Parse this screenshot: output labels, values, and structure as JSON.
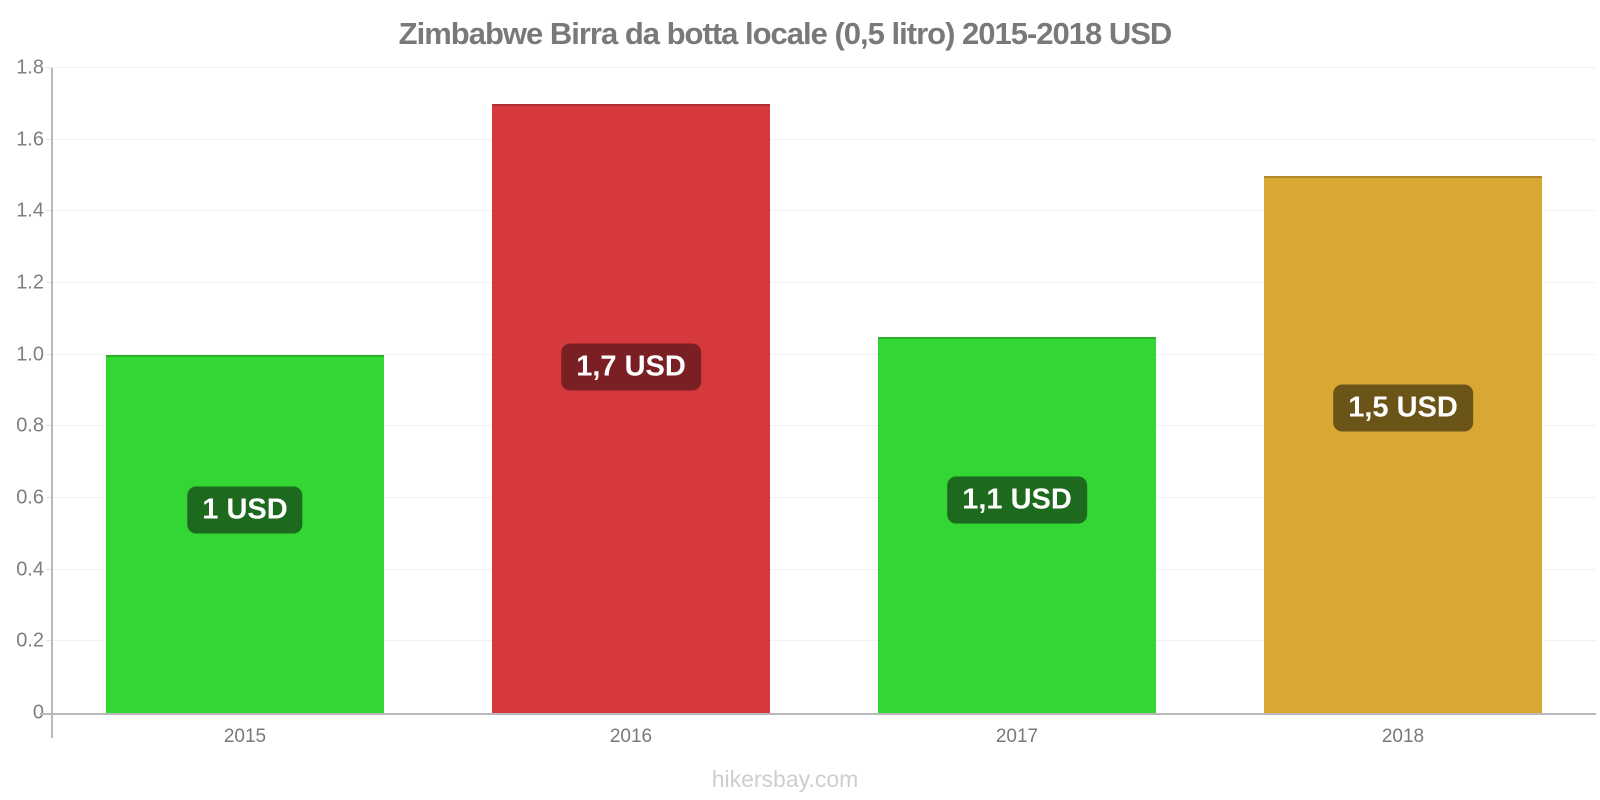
{
  "footer": "hikersbay.com",
  "colors": {
    "title_text": "#77797b",
    "axis_line": "#b9b9b9",
    "gridline": "#f2f2f2",
    "tick_text": "#7d7f81",
    "footer_text": "#ccd0cc",
    "green_bar": "#33d633",
    "green_badge": "#1d691d",
    "red_bar": "#d5393c",
    "red_badge": "#7a2025",
    "gold_bar": "#d9a834",
    "gold_badge": "#6a5417"
  },
  "chart_data": {
    "type": "bar",
    "title": "Zimbabwe Birra da botta locale (0,5 litro) 2015-2018 USD",
    "categories": [
      "2015",
      "2016",
      "2017",
      "2018"
    ],
    "values": [
      1,
      1.7,
      1.1,
      1.5
    ],
    "bar_draw_values": [
      1.0,
      1.7,
      1.05,
      1.5
    ],
    "bar_labels": [
      "1 USD",
      "1,7 USD",
      "1,1 USD",
      "1,5 USD"
    ],
    "bar_colors": [
      "#33d633",
      "#d5393c",
      "#33d633",
      "#d9a834"
    ],
    "badge_colors": [
      "#1d691d",
      "#7a2025",
      "#1d691d",
      "#6a5417"
    ],
    "xlabel": "",
    "ylabel": "",
    "ylim": [
      0,
      1.8
    ],
    "yticks": [
      0,
      0.2,
      0.4,
      0.6,
      0.8,
      1.0,
      1.2,
      1.4,
      1.6,
      1.8
    ],
    "ytick_labels": [
      "0",
      "0.2",
      "0.4",
      "0.6",
      "0.8",
      "1.0",
      "1.2",
      "1.4",
      "1.6",
      "1.8"
    ],
    "grid": true,
    "legend": false,
    "currency": "USD"
  }
}
